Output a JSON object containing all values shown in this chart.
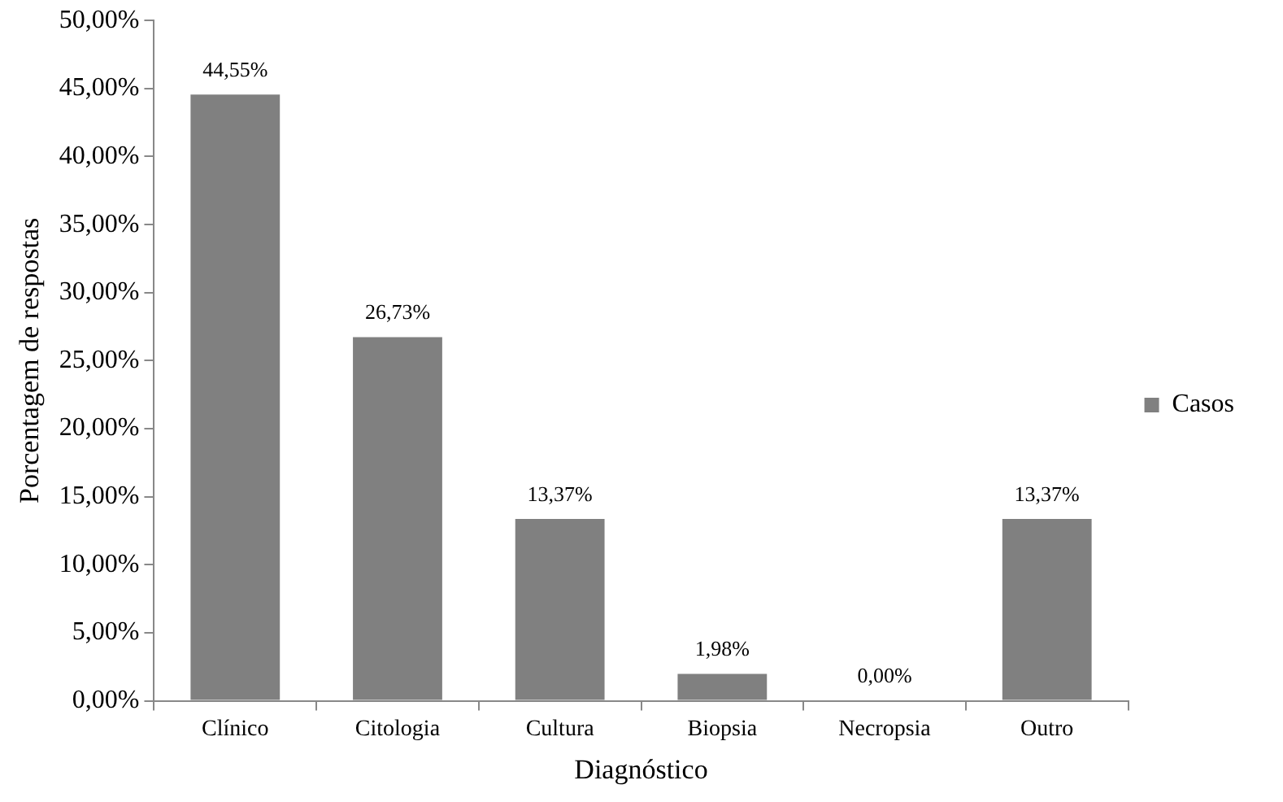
{
  "chart_data": {
    "type": "bar",
    "xlabel": "Diagnóstico",
    "ylabel": "Porcentagem de respostas",
    "categories": [
      "Clínico",
      "Citologia",
      "Cultura",
      "Biopsia",
      "Necropsia",
      "Outro"
    ],
    "series": [
      {
        "name": "Casos",
        "color": "#808080",
        "values": [
          44.55,
          26.73,
          13.37,
          1.98,
          0,
          13.37
        ],
        "value_labels": [
          "44,55%",
          "26,73%",
          "13,37%",
          "1,98%",
          "0,00%",
          "13,37%"
        ]
      }
    ],
    "ylim": [
      0,
      50
    ],
    "yticks": [
      {
        "value": 0,
        "label": "0,00%"
      },
      {
        "value": 5,
        "label": "5,00%"
      },
      {
        "value": 10,
        "label": "10,00%"
      },
      {
        "value": 15,
        "label": "15,00%"
      },
      {
        "value": 20,
        "label": "20,00%"
      },
      {
        "value": 25,
        "label": "25,00%"
      },
      {
        "value": 30,
        "label": "30,00%"
      },
      {
        "value": 35,
        "label": "35,00%"
      },
      {
        "value": 40,
        "label": "40,00%"
      },
      {
        "value": 45,
        "label": "45,00%"
      },
      {
        "value": 50,
        "label": "50,00%"
      }
    ],
    "grid": false,
    "legend": "right"
  }
}
